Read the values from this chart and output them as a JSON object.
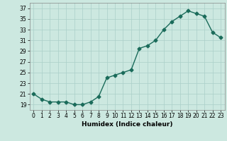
{
  "x": [
    0,
    1,
    2,
    3,
    4,
    5,
    6,
    7,
    8,
    9,
    10,
    11,
    12,
    13,
    14,
    15,
    16,
    17,
    18,
    19,
    20,
    21,
    22,
    23
  ],
  "y": [
    21,
    20,
    19.5,
    19.5,
    19.5,
    19,
    19,
    19.5,
    20.5,
    24,
    24.5,
    25,
    25.5,
    29.5,
    30,
    31,
    33,
    34.5,
    35.5,
    36.5,
    36,
    35.5,
    32.5,
    31.5
  ],
  "line_color": "#1a6b5a",
  "marker": "D",
  "marker_size": 2.5,
  "bg_color": "#cce8e0",
  "grid_color": "#aacfc8",
  "xlabel": "Humidex (Indice chaleur)",
  "xlim": [
    -0.5,
    23.5
  ],
  "ylim": [
    18,
    38
  ],
  "yticks": [
    19,
    21,
    23,
    25,
    27,
    29,
    31,
    33,
    35,
    37
  ],
  "xticks": [
    0,
    1,
    2,
    3,
    4,
    5,
    6,
    7,
    8,
    9,
    10,
    11,
    12,
    13,
    14,
    15,
    16,
    17,
    18,
    19,
    20,
    21,
    22,
    23
  ],
  "xlabel_fontsize": 6.5,
  "tick_fontsize": 5.5,
  "line_width": 1.0
}
